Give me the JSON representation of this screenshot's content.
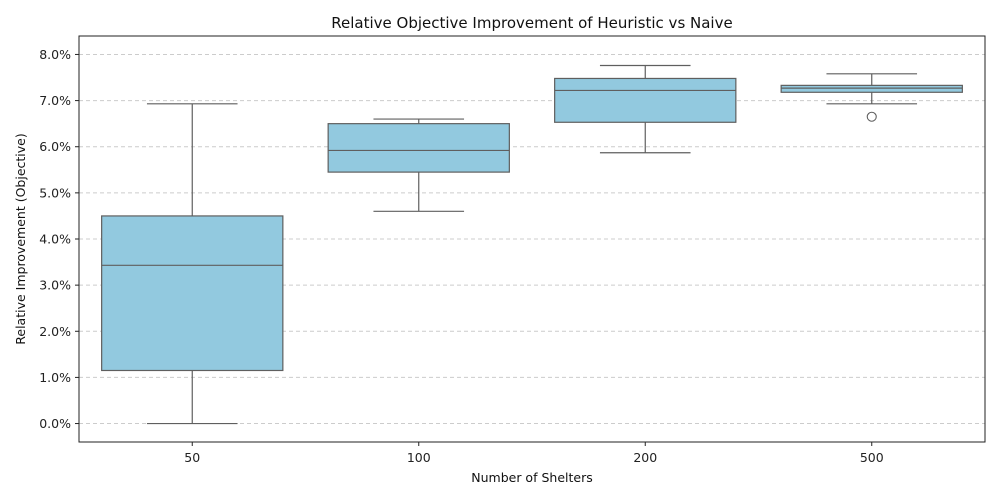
{
  "chart_data": {
    "type": "box",
    "title": "Relative Objective Improvement of Heuristic vs Naive",
    "xlabel": "Number of Shelters",
    "ylabel": "Relative Improvement (Objective)",
    "categories": [
      "50",
      "100",
      "200",
      "500"
    ],
    "ylim": [
      -0.4,
      8.4
    ],
    "yticks": [
      0.0,
      1.0,
      2.0,
      3.0,
      4.0,
      5.0,
      6.0,
      7.0,
      8.0
    ],
    "ytick_labels": [
      "0.0%",
      "1.0%",
      "2.0%",
      "3.0%",
      "4.0%",
      "5.0%",
      "6.0%",
      "7.0%",
      "8.0%"
    ],
    "grid": "y-dashed",
    "boxes": [
      {
        "category": "50",
        "whisker_low": 0.0,
        "q1": 1.15,
        "median": 3.43,
        "q3": 4.5,
        "whisker_high": 6.93,
        "outliers": []
      },
      {
        "category": "100",
        "whisker_low": 4.6,
        "q1": 5.45,
        "median": 5.92,
        "q3": 6.5,
        "whisker_high": 6.6,
        "outliers": []
      },
      {
        "category": "200",
        "whisker_low": 5.87,
        "q1": 6.53,
        "median": 7.22,
        "q3": 7.48,
        "whisker_high": 7.76,
        "outliers": []
      },
      {
        "category": "500",
        "whisker_low": 6.93,
        "q1": 7.18,
        "median": 7.27,
        "q3": 7.33,
        "whisker_high": 7.58,
        "outliers": [
          6.65
        ]
      }
    ],
    "colors": {
      "box_fill": "#92c9df",
      "box_edge": "#5f5f5f",
      "grid": "#cccccc"
    }
  }
}
